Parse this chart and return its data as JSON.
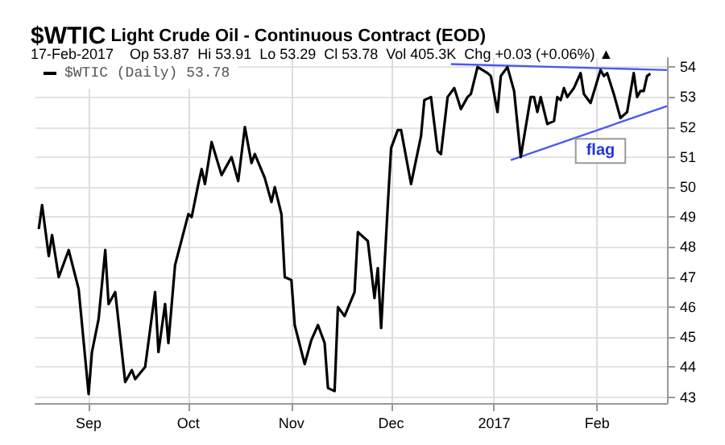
{
  "chart_data": {
    "type": "line",
    "title": "$WTIC Light Crude Oil - Continuous Contract (EOD)",
    "subtitle": "17-Feb-2017    Op 53.87  Hi 53.91  Lo 53.29  Cl 53.78  Vol 405.3K  Chg +0.03 (+0.06%) ▲",
    "x": [
      "2016-08-17",
      "2016-08-18",
      "2016-08-20",
      "2016-08-21",
      "2016-08-23",
      "2016-08-26",
      "2016-08-29",
      "2016-09-01",
      "2016-09-02",
      "2016-09-04",
      "2016-09-06",
      "2016-09-07",
      "2016-09-09",
      "2016-09-12",
      "2016-09-14",
      "2016-09-15",
      "2016-09-18",
      "2016-09-21",
      "2016-09-22",
      "2016-09-24",
      "2016-09-25",
      "2016-09-27",
      "2016-10-01",
      "2016-10-02",
      "2016-10-04",
      "2016-10-05",
      "2016-10-06",
      "2016-10-08",
      "2016-10-11",
      "2016-10-14",
      "2016-10-16",
      "2016-10-18",
      "2016-10-20",
      "2016-10-21",
      "2016-10-24",
      "2016-10-26",
      "2016-10-27",
      "2016-10-29",
      "2016-10-30",
      "2016-11-01",
      "2016-11-02",
      "2016-11-05",
      "2016-11-07",
      "2016-11-09",
      "2016-11-11",
      "2016-11-12",
      "2016-11-14",
      "2016-11-15",
      "2016-11-17",
      "2016-11-20",
      "2016-11-21",
      "2016-11-24",
      "2016-11-26",
      "2016-11-27",
      "2016-11-28",
      "2016-11-30",
      "2016-12-01",
      "2016-12-03",
      "2016-12-04",
      "2016-12-07",
      "2016-12-10",
      "2016-12-11",
      "2016-12-13",
      "2016-12-15",
      "2016-12-16",
      "2016-12-18",
      "2016-12-20",
      "2016-12-22",
      "2016-12-24",
      "2016-12-25",
      "2016-12-27",
      "2016-12-30",
      "2016-12-31",
      "2017-01-02",
      "2017-01-03",
      "2017-01-05",
      "2017-01-07",
      "2017-01-09",
      "2017-01-12",
      "2017-01-13",
      "2017-01-14",
      "2017-01-15",
      "2017-01-17",
      "2017-01-19",
      "2017-01-20",
      "2017-01-21",
      "2017-01-22",
      "2017-01-23",
      "2017-01-25",
      "2017-01-27",
      "2017-01-28",
      "2017-01-30",
      "2017-02-02",
      "2017-02-03",
      "2017-02-04",
      "2017-02-06",
      "2017-02-08",
      "2017-02-10",
      "2017-02-12",
      "2017-02-13",
      "2017-02-14",
      "2017-02-15",
      "2017-02-16",
      "2017-02-17"
    ],
    "series": [
      {
        "name": "$WTIC (Daily) 53.78",
        "color": "#000000",
        "values": [
          48.6,
          49.4,
          47.7,
          48.4,
          47.0,
          47.9,
          46.6,
          43.1,
          44.5,
          45.6,
          47.9,
          46.1,
          46.5,
          43.5,
          43.9,
          43.6,
          44.0,
          46.5,
          44.5,
          46.1,
          44.8,
          47.4,
          49.1,
          49.0,
          50.1,
          50.6,
          50.1,
          51.5,
          50.4,
          51.0,
          50.2,
          52.0,
          50.8,
          51.1,
          50.3,
          49.5,
          50.0,
          49.1,
          47.0,
          46.9,
          45.4,
          44.1,
          44.9,
          45.4,
          44.8,
          43.3,
          43.2,
          46.0,
          45.7,
          46.5,
          48.5,
          48.2,
          46.3,
          47.3,
          45.3,
          49.4,
          51.3,
          51.9,
          51.9,
          50.1,
          51.7,
          52.9,
          53.0,
          51.2,
          51.1,
          53.0,
          53.3,
          52.6,
          53.0,
          53.1,
          54.0,
          53.8,
          53.7,
          52.5,
          53.7,
          54.0,
          53.2,
          51.0,
          53.0,
          53.0,
          52.5,
          53.0,
          52.1,
          52.2,
          53.0,
          52.9,
          53.3,
          53.0,
          53.3,
          53.8,
          53.1,
          52.8,
          53.9,
          53.7,
          53.8,
          53.1,
          52.3,
          52.5,
          53.8,
          53.0,
          53.2,
          53.2,
          53.7,
          53.78
        ]
      },
      {
        "type": "line",
        "color": "#4a5af0",
        "x": [
          "2016-12-19",
          "2017-02-22"
        ],
        "values": [
          54.1,
          53.9
        ]
      },
      {
        "type": "line",
        "color": "#4a5af0",
        "x": [
          "2017-01-06",
          "2017-02-22"
        ],
        "values": [
          50.9,
          52.7
        ]
      }
    ],
    "annotations": [
      {
        "text": "flag",
        "x": "2017-02-02",
        "y": 51.2
      }
    ],
    "xlim": [
      "2016-08-16",
      "2017-02-22"
    ],
    "xticks": [
      {
        "value": "2016-09-01",
        "label": "Sep"
      },
      {
        "value": "2016-10-01",
        "label": "Oct"
      },
      {
        "value": "2016-11-01",
        "label": "Nov"
      },
      {
        "value": "2016-12-01",
        "label": "Dec"
      },
      {
        "value": "2017-01-01",
        "label": "2017"
      },
      {
        "value": "2017-02-01",
        "label": "Feb"
      }
    ],
    "ylim": [
      42.8,
      54.3
    ],
    "yticks": [
      43,
      44,
      45,
      46,
      47,
      48,
      49,
      50,
      51,
      52,
      53,
      54
    ],
    "grid": true,
    "legend": "top left",
    "marker": "none",
    "line_style": "solid"
  }
}
